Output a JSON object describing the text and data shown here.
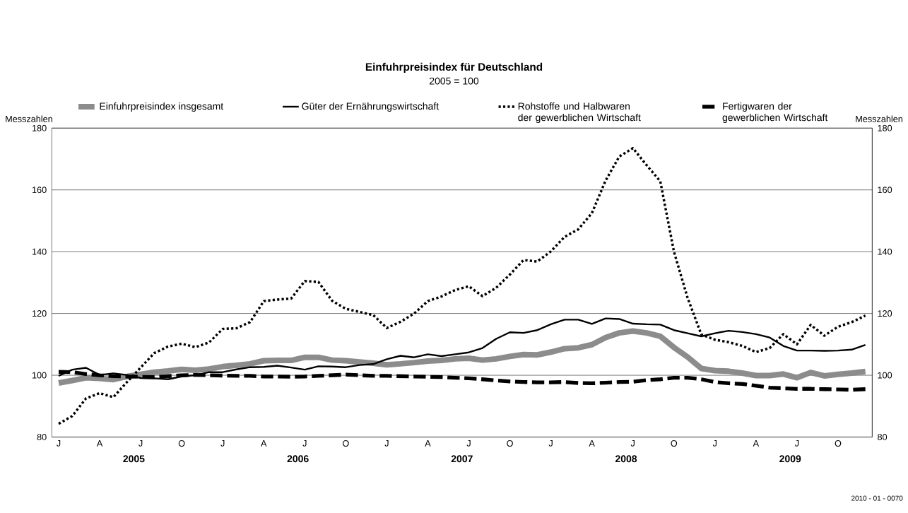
{
  "chart_data": {
    "type": "line",
    "title": "Einfuhrpreisindex für Deutschland",
    "subtitle": "2005 = 100",
    "ylabel": "Messzahlen",
    "y2label": "Messzahlen",
    "categories": [
      "J",
      null,
      null,
      "A",
      null,
      null,
      "J",
      null,
      null,
      "O",
      null,
      null,
      "J",
      null,
      null,
      "A",
      null,
      null,
      "J",
      null,
      null,
      "O",
      null,
      null,
      "J",
      null,
      null,
      "A",
      null,
      null,
      "J",
      null,
      null,
      "O",
      null,
      null,
      "J",
      null,
      null,
      "A",
      null,
      null,
      "J",
      null,
      null,
      "O",
      null,
      null,
      "J",
      null,
      null,
      "A",
      null,
      null,
      "J",
      null,
      null,
      "O",
      null,
      null
    ],
    "ylim": [
      80,
      180
    ],
    "yticks": [
      80,
      100,
      120,
      140,
      160,
      180
    ],
    "y2lim": [
      80,
      180
    ],
    "y2ticks": [
      80,
      100,
      120,
      140,
      160,
      180
    ],
    "grid": "y",
    "legend": "top",
    "marker": "none",
    "annotations": [
      "2005",
      "2006",
      "2007",
      "2008",
      "2009",
      "2010 - 01 - 0070"
    ],
    "series": [
      {
        "name": "Einfuhrpreisindex insgesamt",
        "color": "#8c8c8c",
        "line_style": "solid",
        "values": [
          97.5,
          98.3,
          99.2,
          99.0,
          98.6,
          99.6,
          100.3,
          101.0,
          101.4,
          101.9,
          101.6,
          102.0,
          102.8,
          103.2,
          103.7,
          104.7,
          104.8,
          104.8,
          105.8,
          105.8,
          104.9,
          104.7,
          104.3,
          103.9,
          103.4,
          103.7,
          104.1,
          104.6,
          104.8,
          105.3,
          105.5,
          104.9,
          105.3,
          106.1,
          106.7,
          106.6,
          107.5,
          108.6,
          108.9,
          109.9,
          112.2,
          113.7,
          114.3,
          113.7,
          112.6,
          109.0,
          105.9,
          102.2,
          101.5,
          101.3,
          100.7,
          99.9,
          99.9,
          100.4,
          99.2,
          100.9,
          99.8,
          100.3,
          100.7,
          101.2
        ]
      },
      {
        "name": "Güter der Ernährungswirtschaft",
        "color": "#000000",
        "line_style": "solid",
        "values": [
          99.8,
          101.8,
          102.4,
          100.1,
          100.6,
          100.1,
          99.1,
          99.0,
          98.7,
          99.6,
          100.0,
          101.0,
          101.0,
          101.9,
          102.6,
          102.7,
          103.1,
          102.5,
          101.8,
          102.9,
          102.8,
          102.6,
          103.3,
          103.6,
          105.2,
          106.3,
          105.8,
          106.8,
          106.2,
          106.8,
          107.4,
          108.8,
          111.8,
          113.9,
          113.7,
          114.6,
          116.5,
          118.0,
          118.0,
          116.6,
          118.4,
          118.2,
          116.7,
          116.5,
          116.4,
          114.6,
          113.6,
          112.6,
          113.6,
          114.4,
          114.0,
          113.3,
          112.2,
          109.5,
          108.0,
          108.0,
          107.9,
          108.0,
          108.3,
          109.8
        ]
      },
      {
        "name": "Rohstoffe und Halbwaren der gewerblichen Wirtschaft",
        "color": "#000000",
        "line_style": "dotted",
        "values": [
          84.3,
          86.8,
          92.5,
          94.2,
          92.9,
          97.8,
          102.5,
          107.2,
          109.3,
          110.2,
          109.1,
          110.6,
          115.0,
          115.2,
          117.2,
          124.0,
          124.5,
          124.8,
          130.5,
          130.2,
          124.1,
          121.5,
          120.5,
          119.5,
          115.3,
          117.3,
          120.0,
          124.0,
          125.5,
          127.6,
          128.8,
          125.6,
          128.3,
          132.6,
          137.3,
          136.8,
          140.1,
          144.8,
          147.2,
          152.5,
          163.0,
          170.8,
          173.5,
          168.0,
          162.8,
          140.0,
          125.0,
          113.2,
          111.5,
          110.7,
          109.5,
          107.5,
          108.8,
          113.3,
          110.0,
          116.3,
          112.8,
          115.7,
          117.2,
          119.3
        ]
      },
      {
        "name": "Fertigwaren der gewerblichen Wirtschaft",
        "color": "#000000",
        "line_style": "dashed",
        "values": [
          101.1,
          101.0,
          100.4,
          100.0,
          99.7,
          99.6,
          99.5,
          99.4,
          99.7,
          100.0,
          100.1,
          100.0,
          99.9,
          99.8,
          99.8,
          99.6,
          99.6,
          99.5,
          99.6,
          99.8,
          100.0,
          100.2,
          100.0,
          99.8,
          99.8,
          99.7,
          99.6,
          99.5,
          99.4,
          99.2,
          99.0,
          98.7,
          98.3,
          98.0,
          97.8,
          97.7,
          97.7,
          97.8,
          97.5,
          97.4,
          97.6,
          97.8,
          97.9,
          98.4,
          98.7,
          99.2,
          99.2,
          98.7,
          97.8,
          97.4,
          97.2,
          96.6,
          96.0,
          95.8,
          95.6,
          95.6,
          95.5,
          95.4,
          95.3,
          95.5
        ]
      }
    ]
  }
}
